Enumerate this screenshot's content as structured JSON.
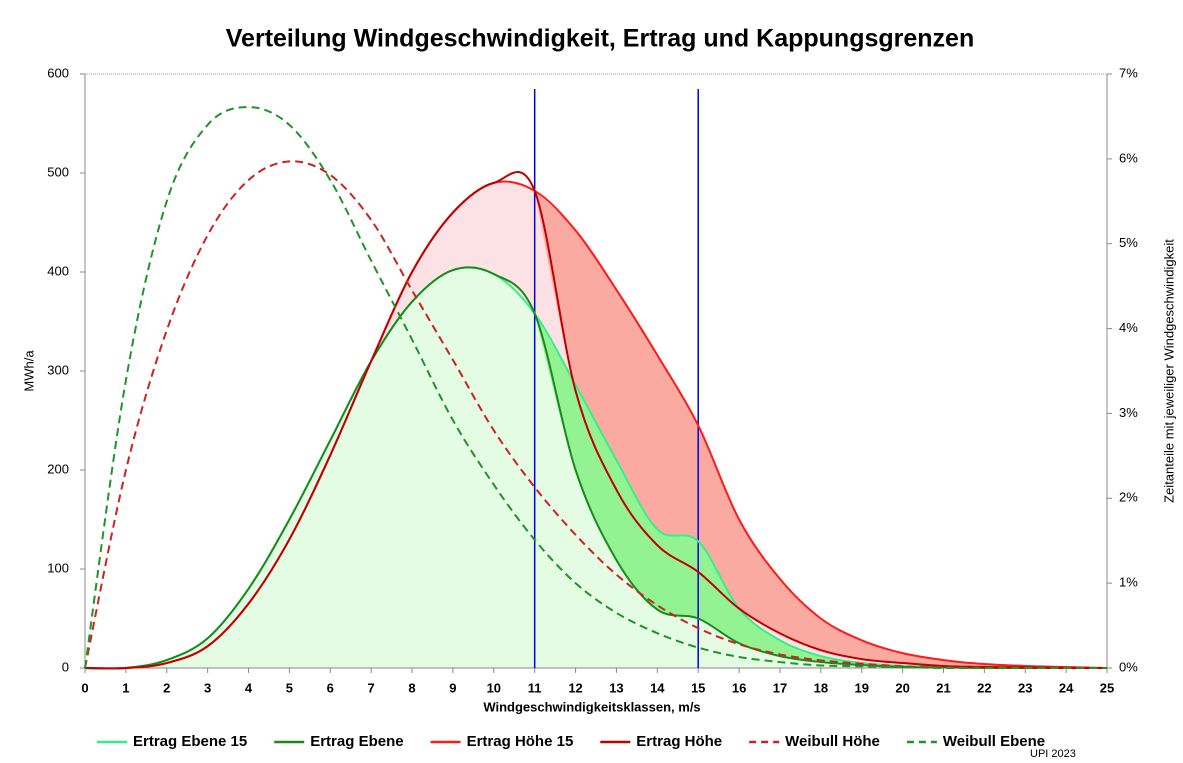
{
  "chart_data": {
    "type": "line",
    "title": "Verteilung Windgeschwindigkeit, Ertrag und Kappungsgrenzen",
    "x_label": "Windgeschwindigkeitsklassen, m/s",
    "y_label": "MWh/a",
    "y2_label": "Zeitanteile mit jeweiliger Windgeschwindigkeit",
    "annotation": "UPI 2023",
    "x": [
      0,
      1,
      2,
      3,
      4,
      5,
      6,
      7,
      8,
      9,
      10,
      11,
      12,
      13,
      14,
      15,
      16,
      17,
      18,
      19,
      20,
      21,
      22,
      23,
      24,
      25
    ],
    "xlim": [
      0,
      25
    ],
    "xticks": [
      0,
      1,
      2,
      3,
      4,
      5,
      6,
      7,
      8,
      9,
      10,
      11,
      12,
      13,
      14,
      15,
      16,
      17,
      18,
      19,
      20,
      21,
      22,
      23,
      24,
      25
    ],
    "ylim": [
      0,
      600
    ],
    "yticks": [
      0,
      100,
      200,
      300,
      400,
      500,
      600
    ],
    "y2lim": [
      0,
      7
    ],
    "y2ticks": [
      {
        "value": 0,
        "label": "0%"
      },
      {
        "value": 1,
        "label": "1%"
      },
      {
        "value": 2,
        "label": "2%"
      },
      {
        "value": 3,
        "label": "3%"
      },
      {
        "value": 4,
        "label": "4%"
      },
      {
        "value": 5,
        "label": "5%"
      },
      {
        "value": 6,
        "label": "6%"
      },
      {
        "value": 7,
        "label": "7%"
      }
    ],
    "vlines": [
      11,
      15
    ],
    "vline_color": "#0000dd",
    "grid": false,
    "legend": "bottom",
    "series": [
      {
        "name": "Ertrag Ebene 15",
        "color": "#33f08a",
        "values": [
          0,
          0,
          8,
          30,
          80,
          150,
          230,
          310,
          370,
          402,
          398,
          358,
          286,
          210,
          140,
          128,
          60,
          28,
          12,
          5,
          2,
          1,
          0.5,
          0,
          0,
          0
        ]
      },
      {
        "name": "Ertrag Ebene",
        "color": "#1a8a1a",
        "values": [
          0,
          0,
          8,
          30,
          80,
          150,
          230,
          310,
          370,
          402,
          398,
          358,
          200,
          109,
          59,
          50,
          25,
          12,
          6,
          3,
          1,
          0.5,
          0,
          0,
          0,
          0
        ]
      },
      {
        "name": "Ertrag Höhe 15",
        "color": "#ff1a1a",
        "values": [
          0,
          0,
          5,
          22,
          65,
          130,
          215,
          310,
          400,
          460,
          490,
          482,
          442,
          382,
          316,
          245,
          150,
          90,
          50,
          28,
          15,
          8,
          4,
          2,
          1,
          0
        ]
      },
      {
        "name": "Ertrag Höhe",
        "color": "#c00000",
        "values": [
          0,
          0,
          5,
          22,
          65,
          130,
          215,
          310,
          400,
          460,
          490,
          482,
          280,
          180,
          124,
          97,
          60,
          35,
          18,
          9,
          5,
          2,
          1,
          0.5,
          0,
          0
        ]
      },
      {
        "name": "Weibull Höhe",
        "color": "#cc2222",
        "dashed": true,
        "axis": "y2",
        "values": [
          0,
          2.33,
          3.98,
          5.1,
          5.75,
          5.97,
          5.81,
          5.28,
          4.45,
          3.63,
          2.8,
          2.13,
          1.57,
          1.1,
          0.74,
          0.47,
          0.28,
          0.16,
          0.09,
          0.05,
          0.02,
          0.01,
          0,
          0,
          0,
          0
        ]
      },
      {
        "name": "Weibull Ebene",
        "color": "#22922a",
        "dashed": true,
        "axis": "y2",
        "values": [
          0,
          3.39,
          5.5,
          6.4,
          6.61,
          6.4,
          5.75,
          4.8,
          3.87,
          2.92,
          2.16,
          1.51,
          1.0,
          0.65,
          0.41,
          0.24,
          0.13,
          0.07,
          0.03,
          0.02,
          0.01,
          0,
          0,
          0,
          0,
          0
        ]
      }
    ]
  }
}
